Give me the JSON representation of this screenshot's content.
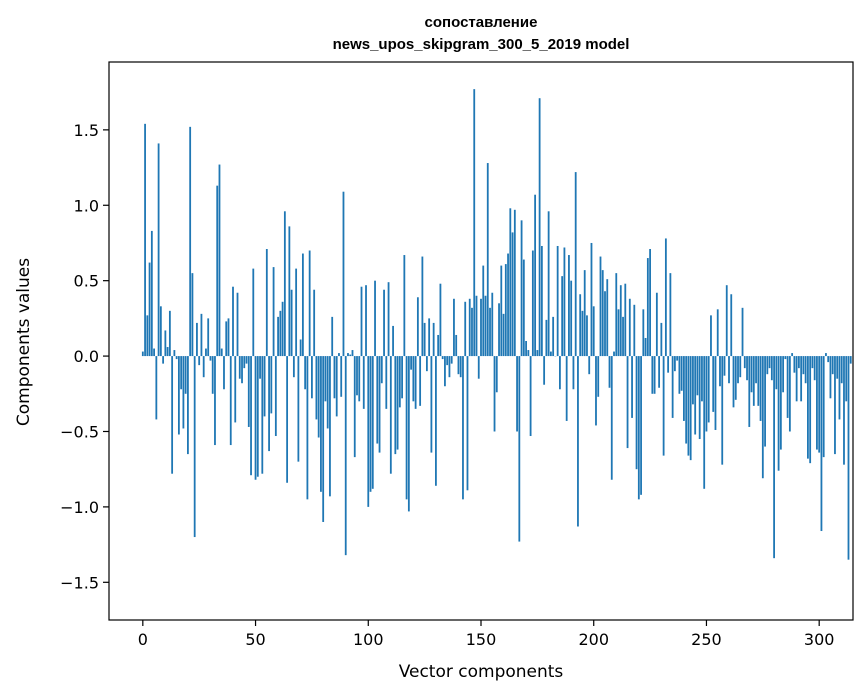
{
  "chart_data": {
    "type": "bar",
    "title_line1": "сопоставление",
    "title_line2": "news_upos_skipgram_300_5_2019 model",
    "xlabel": "Vector components",
    "ylabel": "Components values",
    "xlim": [
      -15,
      315
    ],
    "ylim": [
      -1.75,
      1.95
    ],
    "xticks": [
      0,
      50,
      100,
      150,
      200,
      250,
      300
    ],
    "xtick_labels": [
      "0",
      "50",
      "100",
      "150",
      "200",
      "250",
      "300"
    ],
    "yticks": [
      -1.5,
      -1.0,
      -0.5,
      0.0,
      0.5,
      1.0,
      1.5
    ],
    "ytick_labels": [
      "−1.5",
      "−1.0",
      "−0.5",
      "0.0",
      "0.5",
      "1.0",
      "1.5"
    ],
    "bar_color": "#1f77b4",
    "grid": false,
    "values": [
      0.03,
      1.54,
      0.27,
      0.62,
      0.83,
      0.05,
      -0.42,
      1.41,
      0.33,
      -0.05,
      0.17,
      0.06,
      0.3,
      -0.78,
      0.04,
      -0.02,
      -0.52,
      -0.22,
      -0.48,
      -0.25,
      -0.65,
      1.52,
      0.55,
      -1.2,
      0.22,
      -0.06,
      0.28,
      -0.14,
      0.05,
      0.25,
      -0.03,
      -0.25,
      -0.59,
      1.13,
      1.27,
      0.05,
      -0.22,
      0.23,
      0.25,
      -0.59,
      0.46,
      -0.44,
      0.42,
      -0.15,
      -0.18,
      -0.08,
      -0.05,
      -0.47,
      -0.79,
      0.58,
      -0.82,
      -0.8,
      -0.15,
      -0.78,
      -0.4,
      0.71,
      -0.63,
      -0.38,
      0.59,
      -0.53,
      0.26,
      0.3,
      0.36,
      0.96,
      -0.84,
      0.86,
      0.44,
      -0.14,
      0.58,
      -0.7,
      0.11,
      0.68,
      -0.22,
      -0.95,
      0.7,
      -0.28,
      0.44,
      -0.42,
      -0.54,
      -0.9,
      -1.1,
      -0.3,
      -0.48,
      -0.93,
      0.26,
      -0.28,
      -0.4,
      0.02,
      -0.27,
      1.09,
      -1.32,
      0.02,
      0.01,
      0.04,
      -0.67,
      -0.26,
      -0.3,
      0.46,
      -0.35,
      0.47,
      -1.0,
      -0.9,
      -0.88,
      0.5,
      -0.58,
      -0.64,
      -0.18,
      0.44,
      -0.35,
      0.49,
      -0.78,
      0.2,
      -0.65,
      -0.62,
      -0.34,
      -0.28,
      0.67,
      -0.95,
      -1.03,
      -0.09,
      -0.3,
      -0.35,
      0.39,
      -0.33,
      0.66,
      0.22,
      -0.1,
      0.25,
      -0.64,
      0.22,
      -0.86,
      0.14,
      0.48,
      -0.02,
      -0.2,
      -0.06,
      -0.14,
      -0.05,
      0.38,
      0.14,
      -0.12,
      -0.14,
      -0.95,
      0.36,
      -0.89,
      0.38,
      0.32,
      1.77,
      0.4,
      -0.15,
      0.38,
      0.6,
      0.4,
      1.28,
      0.32,
      0.42,
      -0.5,
      -0.24,
      0.35,
      0.6,
      0.28,
      0.61,
      0.68,
      0.98,
      0.82,
      0.97,
      -0.5,
      -1.23,
      0.9,
      0.64,
      0.1,
      0.04,
      -0.53,
      0.7,
      1.07,
      0.04,
      1.71,
      0.73,
      -0.19,
      0.24,
      0.96,
      0.03,
      0.26,
      0.0,
      0.73,
      -0.22,
      0.53,
      0.72,
      -0.43,
      0.67,
      0.5,
      -0.22,
      1.22,
      -1.13,
      0.41,
      0.3,
      0.57,
      0.27,
      -0.12,
      0.75,
      0.33,
      -0.46,
      -0.27,
      0.66,
      0.57,
      0.43,
      0.51,
      -0.21,
      -0.82,
      0.03,
      0.55,
      0.31,
      0.47,
      0.26,
      0.48,
      -0.61,
      0.38,
      -0.41,
      0.34,
      -0.75,
      -0.95,
      -0.92,
      0.31,
      0.12,
      0.65,
      0.71,
      -0.25,
      -0.25,
      0.42,
      -0.21,
      0.22,
      -0.66,
      0.78,
      -0.11,
      0.55,
      -0.41,
      -0.1,
      -0.03,
      -0.25,
      -0.23,
      -0.43,
      -0.58,
      -0.66,
      -0.69,
      -0.32,
      -0.52,
      -0.26,
      -0.55,
      -0.3,
      -0.88,
      -0.5,
      -0.44,
      0.27,
      -0.37,
      -0.49,
      0.31,
      -0.2,
      -0.72,
      -0.13,
      0.47,
      -0.18,
      0.41,
      -0.34,
      -0.29,
      -0.18,
      -0.14,
      0.32,
      -0.08,
      -0.16,
      -0.47,
      -0.24,
      -0.33,
      -0.18,
      -0.33,
      -0.43,
      -0.81,
      -0.6,
      -0.12,
      -0.08,
      -0.16,
      -1.34,
      -0.22,
      -0.76,
      -0.62,
      -0.24,
      -0.02,
      -0.41,
      -0.5,
      0.02,
      -0.11,
      -0.3,
      -0.08,
      -0.3,
      -0.12,
      -0.18,
      -0.68,
      -0.71,
      -0.08,
      -0.16,
      -0.62,
      -0.64,
      -1.16,
      -0.67,
      0.02,
      -0.04,
      -0.28,
      -0.12,
      -0.65,
      -0.15,
      -0.42,
      -0.18,
      -0.72,
      -0.3,
      -1.35,
      -0.05
    ]
  }
}
